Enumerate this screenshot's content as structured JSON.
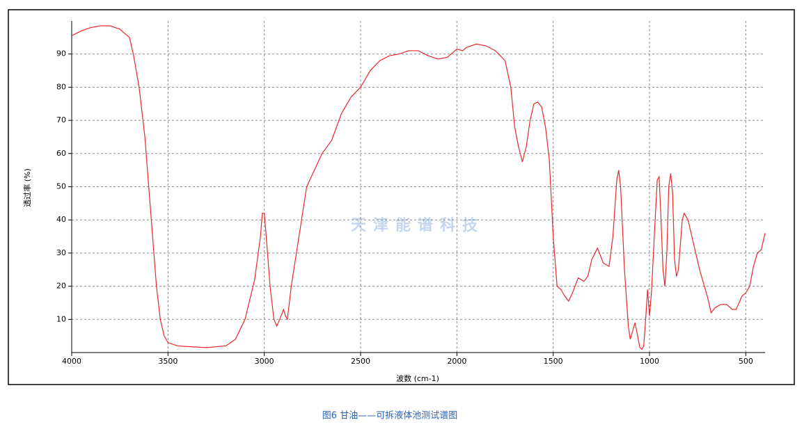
{
  "chart_data": {
    "type": "line",
    "x_label": "波数 (cm-1)",
    "y_label": "透过率 (%)",
    "watermark": "天津能谱科技",
    "caption": "图6 甘油——可拆液体池测试谱图",
    "color": "#e8282b",
    "xlim": [
      4000,
      400
    ],
    "ylim": [
      0,
      100
    ],
    "xticks": [
      4000,
      3500,
      3000,
      2500,
      2000,
      1500,
      1000,
      500
    ],
    "yticks": [
      10,
      20,
      30,
      40,
      50,
      60,
      70,
      80,
      90
    ],
    "grid": true,
    "x": [
      4000,
      3950,
      3900,
      3850,
      3800,
      3750,
      3700,
      3680,
      3650,
      3620,
      3600,
      3580,
      3560,
      3540,
      3520,
      3500,
      3450,
      3400,
      3300,
      3200,
      3150,
      3100,
      3050,
      3020,
      3010,
      3000,
      2990,
      2970,
      2950,
      2935,
      2920,
      2900,
      2890,
      2880,
      2860,
      2820,
      2780,
      2700,
      2650,
      2600,
      2550,
      2500,
      2450,
      2400,
      2350,
      2300,
      2250,
      2200,
      2150,
      2100,
      2050,
      2000,
      1970,
      1950,
      1900,
      1850,
      1800,
      1750,
      1720,
      1700,
      1680,
      1660,
      1640,
      1620,
      1600,
      1580,
      1560,
      1540,
      1520,
      1500,
      1480,
      1460,
      1440,
      1420,
      1400,
      1370,
      1340,
      1320,
      1300,
      1270,
      1240,
      1210,
      1190,
      1170,
      1160,
      1150,
      1130,
      1110,
      1100,
      1085,
      1075,
      1065,
      1050,
      1040,
      1030,
      1020,
      1010,
      1000,
      990,
      975,
      960,
      950,
      940,
      930,
      920,
      910,
      900,
      890,
      880,
      870,
      860,
      850,
      830,
      820,
      800,
      780,
      740,
      700,
      680,
      660,
      630,
      600,
      570,
      550,
      520,
      500,
      480,
      460,
      440,
      420,
      400
    ],
    "values": [
      95.5,
      97,
      98,
      98.5,
      98.5,
      97.5,
      95,
      90,
      80,
      65,
      50,
      35,
      20,
      10,
      5,
      3,
      2,
      1.8,
      1.5,
      2,
      4,
      10,
      22,
      35,
      42,
      42,
      35,
      20,
      10,
      8,
      10,
      13,
      11,
      10,
      20,
      35,
      50,
      60,
      64,
      72,
      77,
      80,
      85,
      88,
      89.5,
      90,
      91,
      91,
      89.5,
      88.5,
      89,
      91.5,
      91,
      92,
      93,
      92.5,
      91,
      88,
      80,
      68,
      62,
      57.5,
      62,
      70,
      75,
      75.5,
      74,
      68,
      58,
      35,
      20,
      19,
      17,
      15.5,
      18,
      22.5,
      21.5,
      23,
      28,
      31.5,
      27,
      26,
      35,
      52,
      55,
      50,
      25,
      8,
      4,
      7,
      9,
      6,
      1.5,
      1,
      2,
      10,
      19,
      11,
      18,
      35,
      52,
      53,
      40,
      25,
      20,
      30,
      50,
      54,
      48,
      28,
      23,
      25,
      40,
      42,
      40,
      35,
      25,
      17,
      12,
      13.5,
      14.5,
      14.5,
      13,
      13,
      17,
      18,
      20,
      26,
      30,
      31,
      36
    ]
  }
}
